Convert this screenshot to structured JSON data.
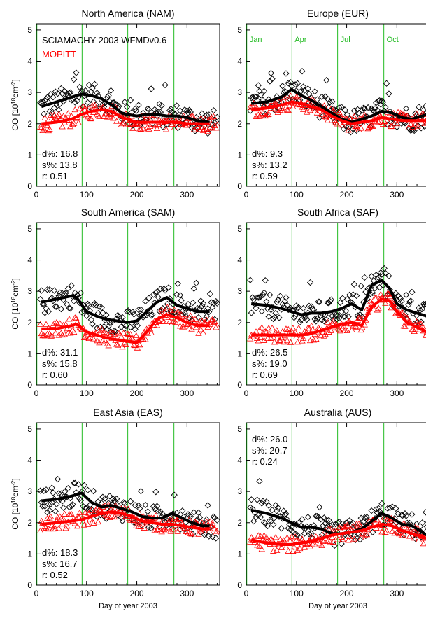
{
  "figure": {
    "xlabel": "Day of year 2003",
    "ylabel_main": "CO [10",
    "ylabel_sup": "18",
    "ylabel_mid": "cm",
    "ylabel_sup2": "-2",
    "ylabel_end": "]"
  },
  "legend": {
    "sciamachy": "SCIAMACHY 2003 WFMDv0.6",
    "mopitt": "MOPITT"
  },
  "month_labels": [
    "Jan",
    "Apr",
    "Jul",
    "Oct"
  ],
  "colors": {
    "sciamachy": "#000000",
    "mopitt": "#ff0000",
    "month_lines": "#22bb22"
  },
  "chart_data": [
    {
      "type": "scatter",
      "title": "North America (NAM)",
      "xlim": [
        0,
        365
      ],
      "ylim": [
        0,
        5.2
      ],
      "xticks": [
        0,
        100,
        200,
        300
      ],
      "yticks": [
        0,
        1,
        2,
        3,
        4,
        5
      ],
      "month_lines": [
        1,
        91,
        182,
        274
      ],
      "stats": {
        "d": "16.8",
        "s": "13.8",
        "r": "0.51"
      },
      "series": [
        {
          "name": "SCIAMACHY 2003 WFMDv0.6",
          "marker": "diamond",
          "x": [
            10,
            40,
            70,
            90,
            110,
            130,
            150,
            170,
            180,
            200,
            220,
            240,
            260,
            280,
            300,
            320,
            345
          ],
          "y": [
            2.55,
            2.7,
            2.85,
            2.95,
            2.9,
            2.8,
            2.6,
            2.35,
            2.3,
            2.25,
            2.3,
            2.3,
            2.25,
            2.25,
            2.2,
            2.1,
            2.05
          ]
        },
        {
          "name": "MOPITT",
          "marker": "triangle",
          "x": [
            10,
            40,
            70,
            90,
            110,
            130,
            150,
            170,
            180,
            200,
            220,
            240,
            260,
            280,
            300,
            320,
            345
          ],
          "y": [
            2.0,
            2.05,
            2.15,
            2.3,
            2.4,
            2.45,
            2.4,
            2.2,
            2.15,
            2.05,
            2.05,
            2.05,
            2.05,
            2.05,
            2.0,
            2.0,
            2.0
          ]
        }
      ]
    },
    {
      "type": "scatter",
      "title": "Europe (EUR)",
      "xlim": [
        0,
        365
      ],
      "ylim": [
        0,
        5.2
      ],
      "xticks": [
        0,
        100,
        200,
        300
      ],
      "yticks": [
        0,
        1,
        2,
        3,
        4,
        5
      ],
      "month_lines": [
        1,
        91,
        182,
        274
      ],
      "stats": {
        "d": "9.3",
        "s": "13.2",
        "r": "0.59"
      },
      "series": [
        {
          "name": "SCIAMACHY 2003 WFMDv0.6",
          "marker": "diamond",
          "x": [
            10,
            40,
            70,
            90,
            110,
            130,
            150,
            170,
            190,
            210,
            230,
            250,
            270,
            290,
            310,
            330,
            360
          ],
          "y": [
            2.65,
            2.7,
            2.85,
            3.1,
            2.9,
            2.75,
            2.55,
            2.35,
            2.15,
            2.05,
            2.15,
            2.25,
            2.4,
            2.35,
            2.2,
            2.15,
            2.3
          ]
        },
        {
          "name": "MOPITT",
          "marker": "triangle",
          "x": [
            10,
            40,
            70,
            90,
            110,
            130,
            150,
            170,
            190,
            210,
            230,
            250,
            270,
            290,
            310,
            330,
            360
          ],
          "y": [
            2.45,
            2.5,
            2.6,
            2.7,
            2.65,
            2.55,
            2.45,
            2.25,
            2.1,
            2.0,
            2.05,
            2.1,
            2.2,
            2.15,
            2.1,
            2.1,
            2.1
          ]
        }
      ]
    },
    {
      "type": "scatter",
      "title": "South America (SAM)",
      "xlim": [
        0,
        365
      ],
      "ylim": [
        0,
        5.2
      ],
      "xticks": [
        0,
        100,
        200,
        300
      ],
      "yticks": [
        0,
        1,
        2,
        3,
        4,
        5
      ],
      "month_lines": [
        1,
        91,
        182,
        274
      ],
      "stats": {
        "d": "31.1",
        "s": "15.8",
        "r": "0.60"
      },
      "series": [
        {
          "name": "SCIAMACHY 2003 WFMDv0.6",
          "marker": "diamond",
          "x": [
            10,
            40,
            70,
            80,
            100,
            120,
            140,
            160,
            180,
            200,
            220,
            240,
            260,
            280,
            300,
            320,
            345
          ],
          "y": [
            2.65,
            2.75,
            2.85,
            2.8,
            2.35,
            2.2,
            2.1,
            2.05,
            2.0,
            2.05,
            2.35,
            2.65,
            2.8,
            2.55,
            2.45,
            2.35,
            2.35
          ]
        },
        {
          "name": "MOPITT",
          "marker": "triangle",
          "x": [
            10,
            40,
            70,
            80,
            100,
            120,
            140,
            160,
            180,
            200,
            220,
            240,
            260,
            280,
            300,
            320,
            345
          ],
          "y": [
            1.8,
            1.8,
            1.9,
            1.95,
            1.7,
            1.6,
            1.5,
            1.45,
            1.4,
            1.35,
            1.7,
            2.1,
            2.25,
            2.15,
            2.0,
            1.9,
            1.9
          ]
        }
      ]
    },
    {
      "type": "scatter",
      "title": "South Africa (SAF)",
      "xlim": [
        0,
        365
      ],
      "ylim": [
        0,
        5.2
      ],
      "xticks": [
        0,
        100,
        200,
        300
      ],
      "yticks": [
        0,
        1,
        2,
        3,
        4,
        5
      ],
      "month_lines": [
        1,
        91,
        182,
        274
      ],
      "stats": {
        "d": "26.5",
        "s": "19.0",
        "r": "0.69"
      },
      "series": [
        {
          "name": "SCIAMACHY 2003 WFMDv0.6",
          "marker": "diamond",
          "x": [
            10,
            40,
            70,
            90,
            110,
            130,
            150,
            170,
            190,
            210,
            230,
            250,
            270,
            285,
            300,
            320,
            360
          ],
          "y": [
            2.6,
            2.55,
            2.45,
            2.35,
            2.25,
            2.3,
            2.3,
            2.35,
            2.45,
            2.6,
            2.4,
            3.2,
            3.35,
            3.1,
            2.6,
            2.4,
            2.2
          ]
        },
        {
          "name": "MOPITT",
          "marker": "triangle",
          "x": [
            10,
            40,
            70,
            90,
            110,
            130,
            150,
            170,
            190,
            210,
            230,
            250,
            270,
            285,
            300,
            320,
            360
          ],
          "y": [
            1.6,
            1.6,
            1.6,
            1.6,
            1.6,
            1.65,
            1.75,
            1.85,
            1.95,
            2.0,
            1.9,
            2.5,
            2.75,
            2.7,
            2.35,
            2.0,
            1.7
          ]
        }
      ]
    },
    {
      "type": "scatter",
      "title": "East Asia (EAS)",
      "xlim": [
        0,
        365
      ],
      "ylim": [
        0,
        5.2
      ],
      "xticks": [
        0,
        100,
        200,
        300
      ],
      "yticks": [
        0,
        1,
        2,
        3,
        4,
        5
      ],
      "month_lines": [
        1,
        91,
        182,
        274
      ],
      "stats": {
        "d": "18.3",
        "s": "16.7",
        "r": "0.52"
      },
      "series": [
        {
          "name": "SCIAMACHY 2003 WFMDv0.6",
          "marker": "diamond",
          "x": [
            10,
            40,
            70,
            90,
            110,
            130,
            150,
            170,
            190,
            210,
            230,
            250,
            270,
            290,
            310,
            330,
            345
          ],
          "y": [
            2.7,
            2.75,
            2.85,
            2.95,
            2.65,
            2.5,
            2.55,
            2.45,
            2.35,
            2.2,
            2.15,
            2.15,
            2.3,
            2.15,
            2.0,
            1.9,
            1.9
          ]
        },
        {
          "name": "MOPITT",
          "marker": "triangle",
          "x": [
            10,
            40,
            70,
            90,
            110,
            130,
            150,
            170,
            190,
            210,
            230,
            250,
            270,
            290,
            310,
            330,
            345
          ],
          "y": [
            1.95,
            2.0,
            2.05,
            2.1,
            2.2,
            2.3,
            2.35,
            2.3,
            2.2,
            2.05,
            2.0,
            1.95,
            1.95,
            1.9,
            1.85,
            1.8,
            1.8
          ]
        }
      ]
    },
    {
      "type": "scatter",
      "title": "Australia (AUS)",
      "xlim": [
        0,
        365
      ],
      "ylim": [
        0,
        5.2
      ],
      "xticks": [
        0,
        100,
        200,
        300
      ],
      "yticks": [
        0,
        1,
        2,
        3,
        4,
        5
      ],
      "month_lines": [
        1,
        91,
        182,
        274
      ],
      "stats": {
        "d": "26.0",
        "s": "20.7",
        "r": "0.24"
      },
      "series": [
        {
          "name": "SCIAMACHY 2003 WFMDv0.6",
          "marker": "diamond",
          "x": [
            10,
            40,
            70,
            90,
            110,
            130,
            150,
            170,
            190,
            210,
            230,
            250,
            270,
            290,
            310,
            330,
            360
          ],
          "y": [
            2.4,
            2.3,
            2.15,
            2.0,
            1.85,
            1.85,
            1.8,
            1.65,
            1.65,
            1.7,
            1.8,
            2.05,
            2.3,
            2.15,
            1.95,
            1.9,
            1.6
          ]
        },
        {
          "name": "MOPITT",
          "marker": "triangle",
          "x": [
            10,
            40,
            70,
            90,
            110,
            130,
            150,
            170,
            190,
            210,
            230,
            250,
            270,
            290,
            310,
            330,
            360
          ],
          "y": [
            1.45,
            1.35,
            1.3,
            1.3,
            1.35,
            1.4,
            1.5,
            1.6,
            1.65,
            1.7,
            1.75,
            1.85,
            1.95,
            1.9,
            1.75,
            1.65,
            1.5
          ]
        }
      ]
    }
  ]
}
